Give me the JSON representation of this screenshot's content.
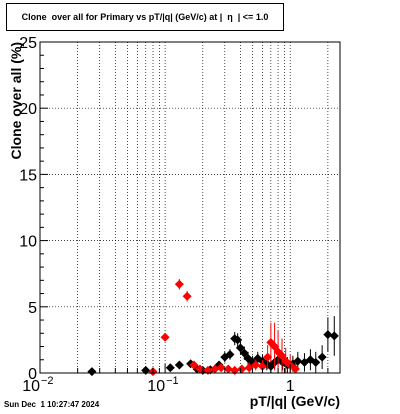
{
  "title": "Clone  over all for Primary vs pT/|q| (GeV/c) at |  η  | <= 1.0",
  "timestamp": "Sun Dec  1 10:27:47 2024",
  "chart_data": {
    "type": "scatter",
    "xlabel": "pT/|q| (GeV/c)",
    "ylabel": "Clone  over all (%)",
    "xscale": "log",
    "xlim": [
      0.01,
      2.5
    ],
    "ylim": [
      0,
      25
    ],
    "grid": true,
    "x_tick_labels": [
      {
        "value": 0.01,
        "label": "10",
        "exp": "−2"
      },
      {
        "value": 0.1,
        "label": "10",
        "exp": "−1"
      },
      {
        "value": 1,
        "label": "1",
        "exp": ""
      }
    ],
    "y_tick_labels": [
      0,
      5,
      10,
      15,
      20,
      25
    ],
    "series": [
      {
        "color": "#000000",
        "points": [
          {
            "x": 0.026,
            "y": 0.1,
            "err": 0.1
          },
          {
            "x": 0.07,
            "y": 0.2,
            "err": 0.1
          },
          {
            "x": 0.11,
            "y": 0.4,
            "err": 0.2
          },
          {
            "x": 0.13,
            "y": 0.6,
            "err": 0.2
          },
          {
            "x": 0.16,
            "y": 0.7,
            "err": 0.2
          },
          {
            "x": 0.18,
            "y": 0.3,
            "err": 0.2
          },
          {
            "x": 0.2,
            "y": 0.2,
            "err": 0.2
          },
          {
            "x": 0.23,
            "y": 0.25,
            "err": 0.2
          },
          {
            "x": 0.27,
            "y": 0.6,
            "err": 0.3
          },
          {
            "x": 0.3,
            "y": 1.2,
            "err": 0.4
          },
          {
            "x": 0.33,
            "y": 1.4,
            "err": 0.4
          },
          {
            "x": 0.36,
            "y": 2.6,
            "err": 0.5
          },
          {
            "x": 0.38,
            "y": 2.5,
            "err": 0.5
          },
          {
            "x": 0.4,
            "y": 1.9,
            "err": 0.5
          },
          {
            "x": 0.43,
            "y": 1.5,
            "err": 0.5
          },
          {
            "x": 0.46,
            "y": 1.1,
            "err": 0.5
          },
          {
            "x": 0.5,
            "y": 0.8,
            "err": 0.5
          },
          {
            "x": 0.55,
            "y": 1.1,
            "err": 0.5
          },
          {
            "x": 0.6,
            "y": 0.9,
            "err": 0.5
          },
          {
            "x": 0.65,
            "y": 0.7,
            "err": 0.5
          },
          {
            "x": 0.7,
            "y": 0.5,
            "err": 0.5
          },
          {
            "x": 0.75,
            "y": 0.8,
            "err": 0.5
          },
          {
            "x": 0.8,
            "y": 1.0,
            "err": 0.5
          },
          {
            "x": 0.87,
            "y": 0.8,
            "err": 0.6
          },
          {
            "x": 0.95,
            "y": 0.6,
            "err": 0.6
          },
          {
            "x": 1.05,
            "y": 0.7,
            "err": 0.6
          },
          {
            "x": 1.15,
            "y": 0.9,
            "err": 0.7
          },
          {
            "x": 1.3,
            "y": 0.8,
            "err": 0.7
          },
          {
            "x": 1.45,
            "y": 1.0,
            "err": 0.8
          },
          {
            "x": 1.6,
            "y": 0.8,
            "err": 0.8
          },
          {
            "x": 1.8,
            "y": 1.2,
            "err": 0.9
          },
          {
            "x": 2.0,
            "y": 2.9,
            "err": 1.3
          },
          {
            "x": 2.25,
            "y": 2.8,
            "err": 1.5
          }
        ]
      },
      {
        "color": "#ff0000",
        "points": [
          {
            "x": 0.08,
            "y": 0.1,
            "err": 0.1
          },
          {
            "x": 0.1,
            "y": 2.7,
            "err": 0.3
          },
          {
            "x": 0.13,
            "y": 6.7,
            "err": 0.4
          },
          {
            "x": 0.15,
            "y": 5.8,
            "err": 0.4
          },
          {
            "x": 0.17,
            "y": 0.6,
            "err": 0.2
          },
          {
            "x": 0.19,
            "y": 0.3,
            "err": 0.2
          },
          {
            "x": 0.22,
            "y": 0.2,
            "err": 0.2
          },
          {
            "x": 0.25,
            "y": 0.3,
            "err": 0.2
          },
          {
            "x": 0.28,
            "y": 0.4,
            "err": 0.3
          },
          {
            "x": 0.32,
            "y": 0.3,
            "err": 0.3
          },
          {
            "x": 0.36,
            "y": 0.2,
            "err": 0.3
          },
          {
            "x": 0.41,
            "y": 0.3,
            "err": 0.3
          },
          {
            "x": 0.47,
            "y": 0.4,
            "err": 0.4
          },
          {
            "x": 0.53,
            "y": 0.6,
            "err": 0.4
          },
          {
            "x": 0.6,
            "y": 0.5,
            "err": 0.5
          },
          {
            "x": 0.66,
            "y": 1.2,
            "err": 0.9
          },
          {
            "x": 0.7,
            "y": 2.3,
            "err": 1.5
          },
          {
            "x": 0.75,
            "y": 2.0,
            "err": 1.8
          },
          {
            "x": 0.8,
            "y": 1.6,
            "err": 1.6
          },
          {
            "x": 0.86,
            "y": 1.3,
            "err": 1.3
          },
          {
            "x": 0.92,
            "y": 0.9,
            "err": 1.0
          },
          {
            "x": 1.0,
            "y": 0.6,
            "err": 0.8
          },
          {
            "x": 1.1,
            "y": 0.3,
            "err": 0.5
          }
        ]
      }
    ]
  }
}
